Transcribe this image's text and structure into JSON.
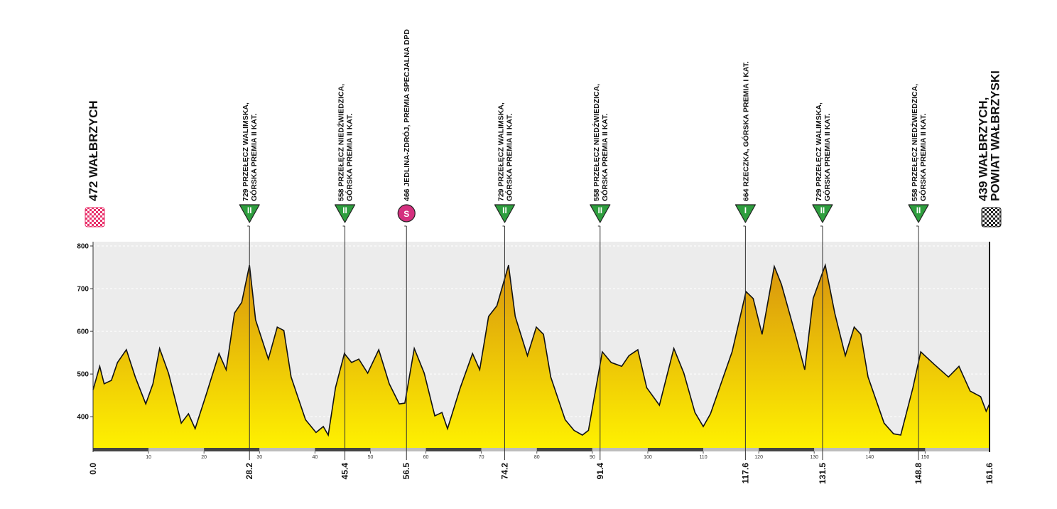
{
  "chart_data": {
    "type": "elevation-profile",
    "xlim": [
      0,
      161.6
    ],
    "ylim": [
      322,
      810
    ],
    "yticks": [
      400,
      500,
      600,
      700,
      800
    ],
    "xticks": [
      10,
      20,
      30,
      40,
      50,
      60,
      70,
      80,
      90,
      100,
      110,
      120,
      130,
      140,
      150
    ],
    "grid": true,
    "fill_top": "#d8940e",
    "fill_bottom": "#fff200",
    "start": {
      "km": {
        "value": 0,
        "label": "0.0"
      },
      "lines": [
        "472 WAŁBRZYCH"
      ]
    },
    "finish": {
      "km": 161.6,
      "lines": [
        "439 WAŁBRZYCH,",
        "POWIAT WAŁBRZYSKI"
      ]
    },
    "markers": [
      {
        "km": 28.2,
        "sign": "II",
        "lines": [
          "729 PRZEŁĘCZ WALIMSKA,",
          "GÓRSKA PREMIA II KAT."
        ]
      },
      {
        "km": 45.4,
        "sign": "II",
        "lines": [
          "558 PRZEŁĘCZ NIEDŹWIEDZICA,",
          "GÓRSKA PREMIA II KAT."
        ]
      },
      {
        "km": 56.5,
        "sign": "S",
        "lines": [
          "466 JEDLINA-ZDRÓJ, PREMIA SPECJALNA DPD"
        ]
      },
      {
        "km": 74.2,
        "sign": "II",
        "lines": [
          "729 PRZEŁĘCZ WALIMSKA,",
          "GÓRSKA PREMIA II KAT."
        ]
      },
      {
        "km": 91.4,
        "sign": "II",
        "lines": [
          "558 PRZEŁĘCZ NIEDŹWIEDZICA,",
          "GÓRSKA PREMIA II KAT."
        ]
      },
      {
        "km": 117.6,
        "sign": "I",
        "lines": [
          "664 RZECZKA, GÓRSKA PREMIA I KAT."
        ]
      },
      {
        "km": 131.5,
        "sign": "II",
        "lines": [
          "729 PRZEŁĘCZ WALIMSKA,",
          "GÓRSKA PREMIA II KAT."
        ]
      },
      {
        "km": 148.8,
        "sign": "II",
        "lines": [
          "558 PRZEŁĘCZ NIEDŹWIEDZICA,",
          "GÓRSKA PREMIA II KAT."
        ]
      }
    ],
    "profile": {
      "km": [
        0,
        1.2,
        2,
        3.3,
        4.4,
        6,
        7.6,
        9.5,
        10.8,
        12,
        13.6,
        15.9,
        17.2,
        18.4,
        20.4,
        22.7,
        24,
        25.5,
        26.8,
        28.2,
        29.3,
        31.6,
        33.2,
        34.4,
        35.7,
        38.3,
        40.2,
        41.5,
        42.4,
        43.7,
        45.3,
        46.6,
        47.9,
        49.5,
        51.5,
        53.4,
        55.2,
        56.2,
        57.9,
        59.7,
        61.6,
        62.9,
        63.9,
        66.2,
        68.4,
        69.7,
        71.3,
        72.8,
        74.9,
        76.1,
        78.3,
        79.9,
        81.2,
        82.5,
        85.1,
        86.7,
        88.2,
        89.3,
        91.8,
        93.4,
        95.3,
        96.6,
        98.2,
        99.8,
        102.1,
        104.7,
        106.5,
        108.5,
        110,
        111.3,
        115.2,
        117.7,
        119,
        120.6,
        122.8,
        124.1,
        126.6,
        128.3,
        129.8,
        132,
        133.7,
        135.6,
        137.2,
        138.4,
        139.7,
        142.6,
        144.3,
        145.6,
        147.8,
        149.2,
        151.6,
        154.2,
        156.1,
        158.1,
        160,
        161,
        161.6
      ],
      "elevation": [
        463,
        518,
        477,
        485,
        527,
        557,
        493,
        430,
        477,
        560,
        502,
        385,
        407,
        372,
        452,
        548,
        510,
        643,
        668,
        755,
        627,
        535,
        610,
        602,
        493,
        393,
        363,
        377,
        357,
        468,
        548,
        527,
        535,
        502,
        557,
        477,
        430,
        432,
        560,
        502,
        402,
        410,
        372,
        468,
        548,
        510,
        635,
        660,
        755,
        635,
        543,
        610,
        593,
        493,
        393,
        368,
        357,
        368,
        552,
        527,
        518,
        543,
        557,
        468,
        427,
        560,
        502,
        410,
        377,
        407,
        552,
        693,
        677,
        593,
        752,
        710,
        593,
        510,
        677,
        755,
        643,
        543,
        610,
        593,
        493,
        385,
        360,
        357,
        468,
        552,
        523,
        493,
        518,
        460,
        447,
        413,
        430
      ]
    }
  }
}
